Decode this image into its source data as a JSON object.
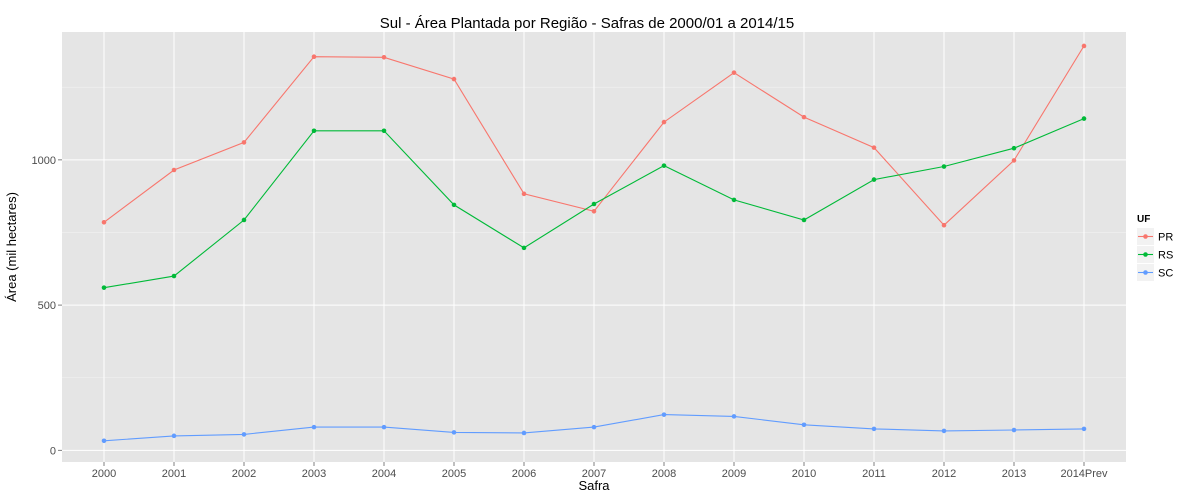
{
  "chart_data": {
    "type": "line",
    "title": "Sul  - Área Plantada por Região - Safras de 2000/01 a 2014/15",
    "xlabel": "Safra",
    "ylabel": "Área (mil hectares)",
    "categories": [
      "2000",
      "2001",
      "2002",
      "2003",
      "2004",
      "2005",
      "2006",
      "2007",
      "2008",
      "2009",
      "2010",
      "2011",
      "2012",
      "2013",
      "2014Prev"
    ],
    "yticks": [
      0,
      500,
      1000
    ],
    "ylim": [
      -40,
      1440
    ],
    "grid": true,
    "legend": {
      "title": "UF",
      "position": "right"
    },
    "series": [
      {
        "name": "PR",
        "color": "#F8766D",
        "values": [
          785,
          965,
          1060,
          1355,
          1353,
          1278,
          883,
          823,
          1130,
          1300,
          1147,
          1042,
          775,
          998,
          1392
        ]
      },
      {
        "name": "RS",
        "color": "#00BA38",
        "values": [
          560,
          600,
          793,
          1100,
          1100,
          845,
          697,
          848,
          980,
          862,
          793,
          932,
          977,
          1040,
          1142
        ]
      },
      {
        "name": "SC",
        "color": "#619CFF",
        "values": [
          33,
          50,
          55,
          80,
          80,
          62,
          60,
          80,
          123,
          117,
          88,
          74,
          67,
          70,
          74
        ]
      }
    ]
  }
}
